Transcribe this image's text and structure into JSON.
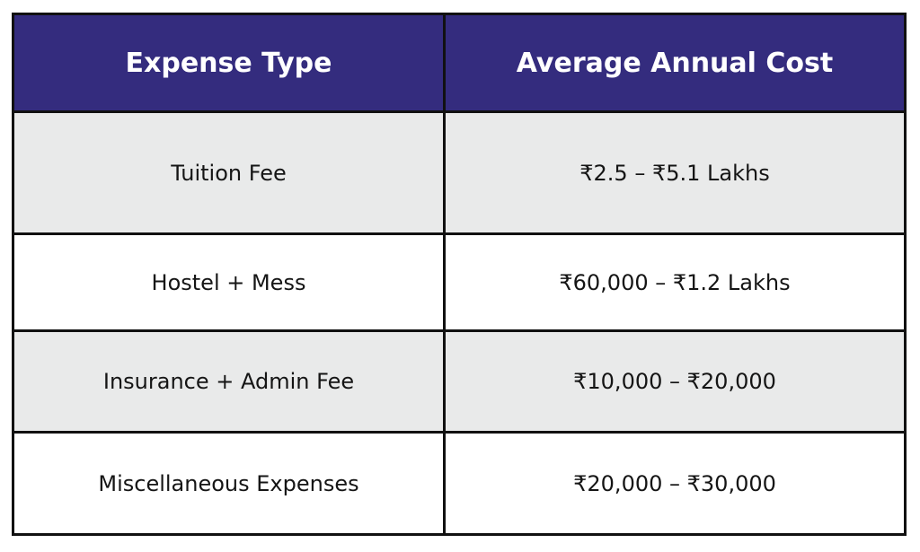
{
  "table": {
    "headers": [
      "Expense Type",
      "Average Annual Cost"
    ],
    "rows": [
      [
        "Tuition Fee",
        "₹2.5 – ₹5.1 Lakhs"
      ],
      [
        "Hostel + Mess",
        "₹60,000 – ₹1.2 Lakhs"
      ],
      [
        "Insurance + Admin Fee",
        "₹10,000 – ₹20,000"
      ],
      [
        "Miscellaneous Expenses",
        "₹20,000 – ₹30,000"
      ]
    ]
  },
  "colors": {
    "header_bg": "#342c7e",
    "header_text": "#ffffff",
    "row_alt_bg": "#e9eaea",
    "row_bg": "#ffffff",
    "border": "#111111"
  }
}
